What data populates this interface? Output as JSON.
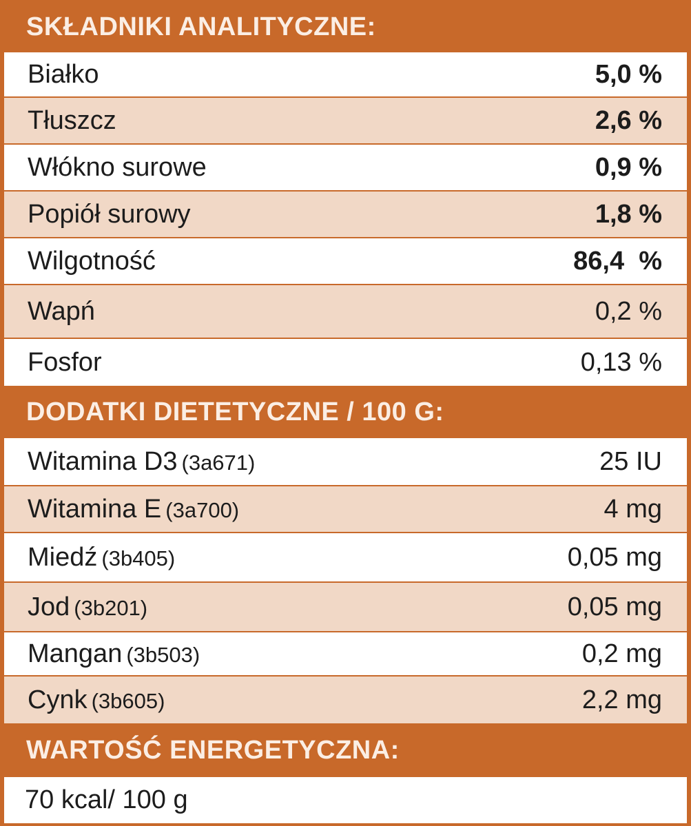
{
  "sections": {
    "analytical": {
      "title": "SKŁADNIKI ANALITYCZNE:",
      "rows": [
        {
          "label": "Białko",
          "value": "5,0 %"
        },
        {
          "label": "Tłuszcz",
          "value": "2,6 %"
        },
        {
          "label": "Włókno surowe",
          "value": "0,9 %"
        },
        {
          "label": "Popiół surowy",
          "value": "1,8 %"
        },
        {
          "label": "Wilgotność",
          "value": "86,4  %"
        },
        {
          "label": "Wapń",
          "value": "0,2 %"
        },
        {
          "label": "Fosfor",
          "value": "0,13 %"
        }
      ]
    },
    "additives": {
      "title": "DODATKI DIETETYCZNE / 100 G:",
      "rows": [
        {
          "label": "Witamina D3",
          "code": "(3a671)",
          "value": "25 IU"
        },
        {
          "label": "Witamina E",
          "code": "(3a700)",
          "value": "4 mg"
        },
        {
          "label": "Miedź",
          "code": "(3b405)",
          "value": "0,05 mg"
        },
        {
          "label": "Jod",
          "code": "(3b201)",
          "value": "0,05 mg"
        },
        {
          "label": "Mangan",
          "code": "(3b503)",
          "value": "0,2 mg"
        },
        {
          "label": "Cynk",
          "code": "(3b605)",
          "value": "2,2 mg"
        }
      ]
    },
    "energy": {
      "title": "WARTOŚĆ ENERGETYCZNA:",
      "value": "70 kcal/ 100 g"
    }
  },
  "colors": {
    "header_bg": "#c8692a",
    "header_text": "#fbeee4",
    "row_tint": "#f1d8c6",
    "row_white": "#ffffff"
  }
}
